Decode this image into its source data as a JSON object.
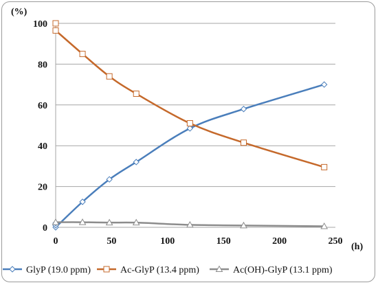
{
  "chart_data": {
    "type": "line",
    "ylabel": "(%)",
    "xlabel": "(h)",
    "xlim": [
      0,
      250
    ],
    "ylim": [
      0,
      100
    ],
    "xticks": [
      0,
      50,
      100,
      150,
      200,
      250
    ],
    "yticks": [
      0,
      20,
      40,
      60,
      80,
      100
    ],
    "grid": "horizontal",
    "legend_position": "bottom",
    "series": [
      {
        "name": "GlyP (19.0 ppm)",
        "color": "#4f81bd",
        "marker": "diamond",
        "points": [
          [
            0,
            0
          ],
          [
            0,
            1
          ],
          [
            0,
            2
          ],
          [
            24,
            12.5
          ],
          [
            48,
            23.5
          ],
          [
            72,
            32
          ],
          [
            120,
            48.5
          ],
          [
            168,
            58
          ],
          [
            240,
            70
          ]
        ]
      },
      {
        "name": "Ac-GlyP (13.4 ppm)",
        "color": "#c0504d",
        "marker": "square",
        "points": [
          [
            0,
            100
          ],
          [
            0,
            96.5
          ],
          [
            24,
            85
          ],
          [
            48,
            74
          ],
          [
            72,
            65.5
          ],
          [
            120,
            51
          ],
          [
            168,
            41.5
          ],
          [
            240,
            29.5
          ]
        ]
      },
      {
        "name": "Ac(OH)-GlyP (13.1 ppm)",
        "color": "#7f7f7f",
        "marker": "triangle",
        "points": [
          [
            0,
            2.5
          ],
          [
            24,
            2.5
          ],
          [
            48,
            2.3
          ],
          [
            72,
            2.3
          ],
          [
            120,
            1.2
          ],
          [
            168,
            0.9
          ],
          [
            240,
            0.5
          ]
        ]
      }
    ]
  }
}
